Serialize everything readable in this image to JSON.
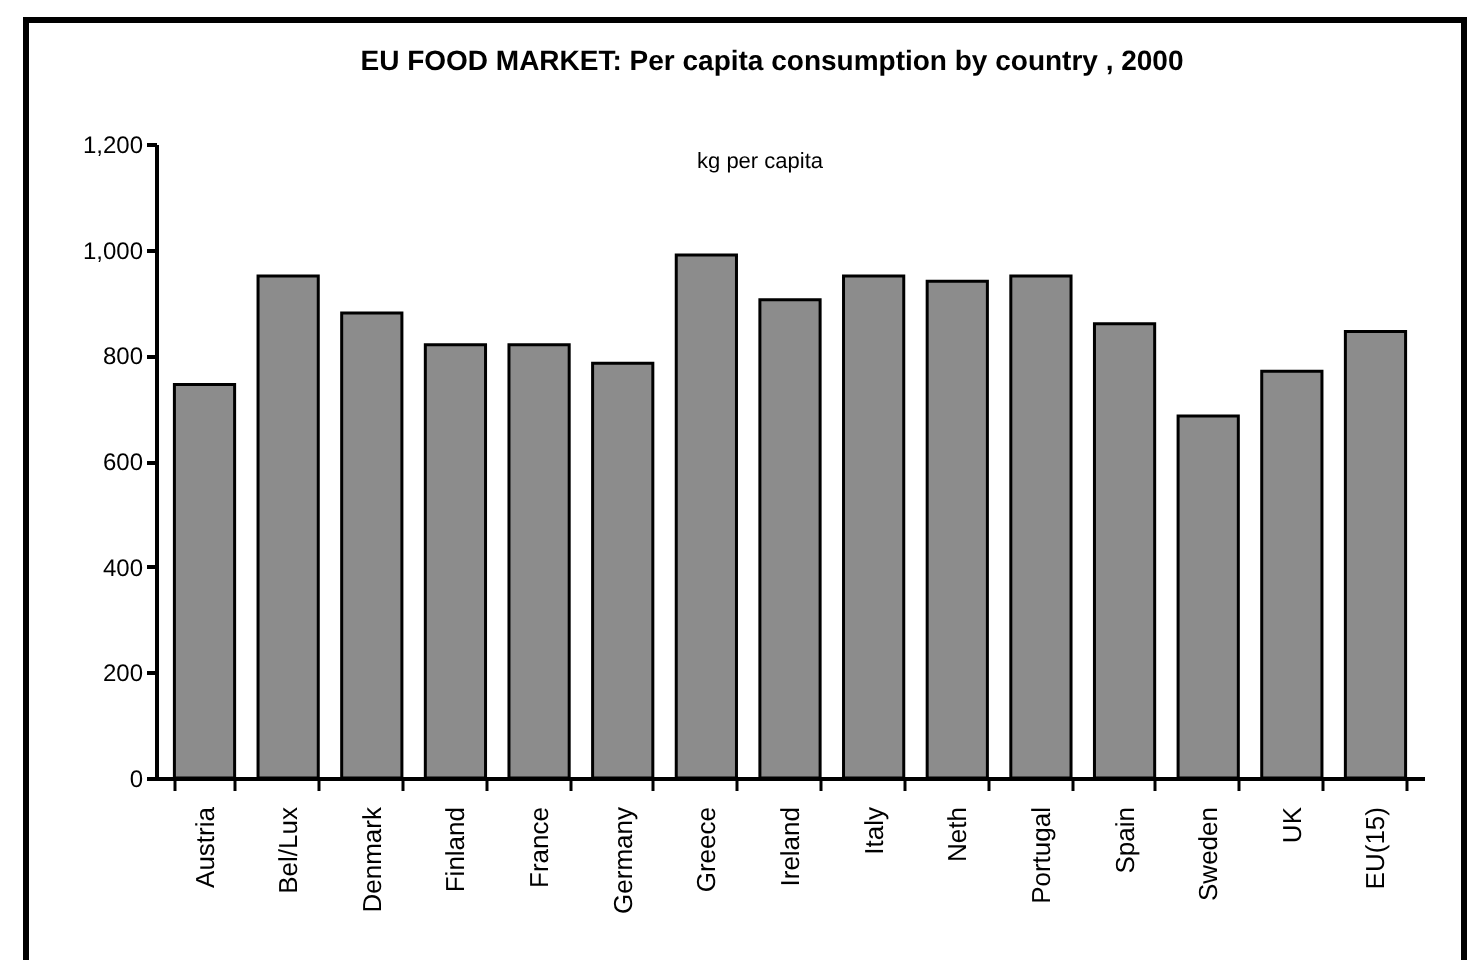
{
  "chart_data": {
    "type": "bar",
    "title": "EU FOOD MARKET: Per capita consumption by country , 2000",
    "subtitle": "kg per capita",
    "categories": [
      "Austria",
      "Bel/Lux",
      "Denmark",
      "Finland",
      "France",
      "Germany",
      "Greece",
      "Ireland",
      "Italy",
      "Neth",
      "Portugal",
      "Spain",
      "Sweden",
      "UK",
      "EU(15)"
    ],
    "values": [
      745,
      950,
      880,
      820,
      820,
      785,
      990,
      905,
      950,
      940,
      950,
      860,
      685,
      770,
      845
    ],
    "color": "#8c8c8c",
    "ylim": [
      0,
      1200
    ],
    "yticks": [
      0,
      200,
      400,
      600,
      800,
      {
        "value": 1000,
        "label": "1,000"
      },
      {
        "value": 1200,
        "label": "1,200"
      }
    ]
  }
}
